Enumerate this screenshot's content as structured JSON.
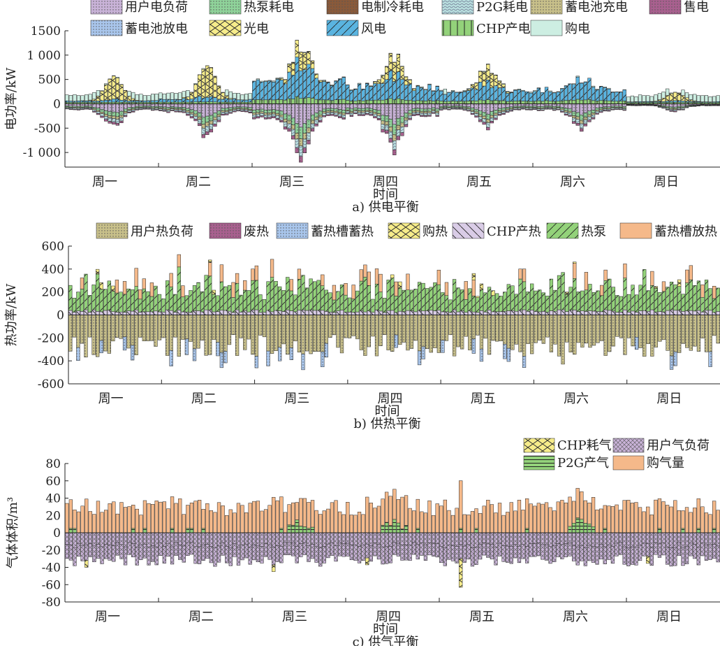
{
  "chart_data": [
    {
      "type": "bar",
      "caption": "a) 供电平衡",
      "ylabel": "电功率/kW",
      "xlabel": "时间",
      "ylim": [
        -1300,
        1500
      ],
      "yticks": [
        {
          "v": 1500,
          "label": "1500"
        },
        {
          "v": 1000,
          "label": "1 000"
        },
        {
          "v": 500,
          "label": "500"
        },
        {
          "v": 0,
          "label": "0"
        },
        {
          "v": -500,
          "label": "-500"
        },
        {
          "v": -1000,
          "label": "-1 000"
        }
      ],
      "categories": [
        "周一",
        "周二",
        "周三",
        "周四",
        "周五",
        "周六",
        "周日"
      ],
      "hours_per_day": 24,
      "legend": [
        {
          "name": "用户电负荷",
          "color": "#c9b3d8",
          "pattern": "dots"
        },
        {
          "name": "热泵耗电",
          "color": "#8fd39a",
          "pattern": "dots"
        },
        {
          "name": "电制冷耗电",
          "color": "#8a5a3a",
          "pattern": "dots"
        },
        {
          "name": "P2G耗电",
          "color": "#b8dede",
          "pattern": "waves"
        },
        {
          "name": "蓄电池充电",
          "color": "#c8c08a",
          "pattern": "dots"
        },
        {
          "name": "售电",
          "color": "#a9608f",
          "pattern": "dots"
        },
        {
          "name": "蓄电池放电",
          "color": "#a9c6ec",
          "pattern": "dots"
        },
        {
          "name": "光电",
          "color": "#f6ec8a",
          "pattern": "cross"
        },
        {
          "name": "风电",
          "color": "#5ab4e0",
          "pattern": "slash"
        },
        {
          "name": "CHP产电",
          "color": "#93d27a",
          "pattern": "vline"
        },
        {
          "name": "购电",
          "color": "#cdeee2",
          "pattern": "none"
        }
      ],
      "daily_peak_solar": [
        470,
        650,
        380,
        390,
        320,
        0,
        170
      ],
      "daily_peak_wind": [
        60,
        120,
        720,
        520,
        380,
        440,
        30
      ],
      "daily_peak_load": [
        -480,
        -680,
        -1120,
        -920,
        -500,
        -520,
        -160
      ]
    },
    {
      "type": "bar",
      "caption": "b) 供热平衡",
      "ylabel": "热功率/kW",
      "xlabel": "时间",
      "ylim": [
        -600,
        600
      ],
      "yticks": [
        {
          "v": 600,
          "label": "600"
        },
        {
          "v": 400,
          "label": "400"
        },
        {
          "v": 200,
          "label": "200"
        },
        {
          "v": 0,
          "label": "0"
        },
        {
          "v": -200,
          "label": "-200"
        },
        {
          "v": -400,
          "label": "-400"
        },
        {
          "v": -600,
          "label": "-600"
        }
      ],
      "categories": [
        "周一",
        "周二",
        "周三",
        "周四",
        "周五",
        "周六",
        "周日"
      ],
      "hours_per_day": 24,
      "legend": [
        {
          "name": "用户热负荷",
          "color": "#c8c08a",
          "pattern": "dots"
        },
        {
          "name": "废热",
          "color": "#a9608f",
          "pattern": "dots"
        },
        {
          "name": "蓄热槽蓄热",
          "color": "#a9c6ec",
          "pattern": "dots"
        },
        {
          "name": "购热",
          "color": "#f6ec8a",
          "pattern": "cross"
        },
        {
          "name": "CHP产热",
          "color": "#d9cce6",
          "pattern": "backslash"
        },
        {
          "name": "热泵",
          "color": "#93d27a",
          "pattern": "slash"
        },
        {
          "name": "蓄热槽放热",
          "color": "#f5b98a",
          "pattern": "none"
        }
      ],
      "daily_peak_load": [
        -520,
        -380,
        -410,
        -400,
        -380,
        -560,
        -380
      ]
    },
    {
      "type": "bar",
      "caption": "c) 供气平衡",
      "ylabel": "气体体积/m³",
      "xlabel": "时间",
      "ylim": [
        -80,
        80
      ],
      "yticks": [
        {
          "v": 80,
          "label": "80"
        },
        {
          "v": 60,
          "label": "60"
        },
        {
          "v": 40,
          "label": "40"
        },
        {
          "v": 20,
          "label": "20"
        },
        {
          "v": 0,
          "label": "0"
        },
        {
          "v": -20,
          "label": "-20"
        },
        {
          "v": -40,
          "label": "-40"
        },
        {
          "v": -60,
          "label": "-60"
        },
        {
          "v": -80,
          "label": "-80"
        }
      ],
      "categories": [
        "周一",
        "周二",
        "周三",
        "周四",
        "周五",
        "周六",
        "周日"
      ],
      "hours_per_day": 24,
      "legend": [
        {
          "name": "CHP耗气",
          "color": "#f6ec8a",
          "pattern": "cross"
        },
        {
          "name": "用户气负荷",
          "color": "#c9b3d8",
          "pattern": "crosshatch"
        },
        {
          "name": "P2G产气",
          "color": "#93d27a",
          "pattern": "hline"
        },
        {
          "name": "购气量",
          "color": "#f5b98a",
          "pattern": "none"
        }
      ],
      "daily_peak_buy": [
        46,
        50,
        50,
        42,
        71,
        40,
        40
      ]
    }
  ]
}
